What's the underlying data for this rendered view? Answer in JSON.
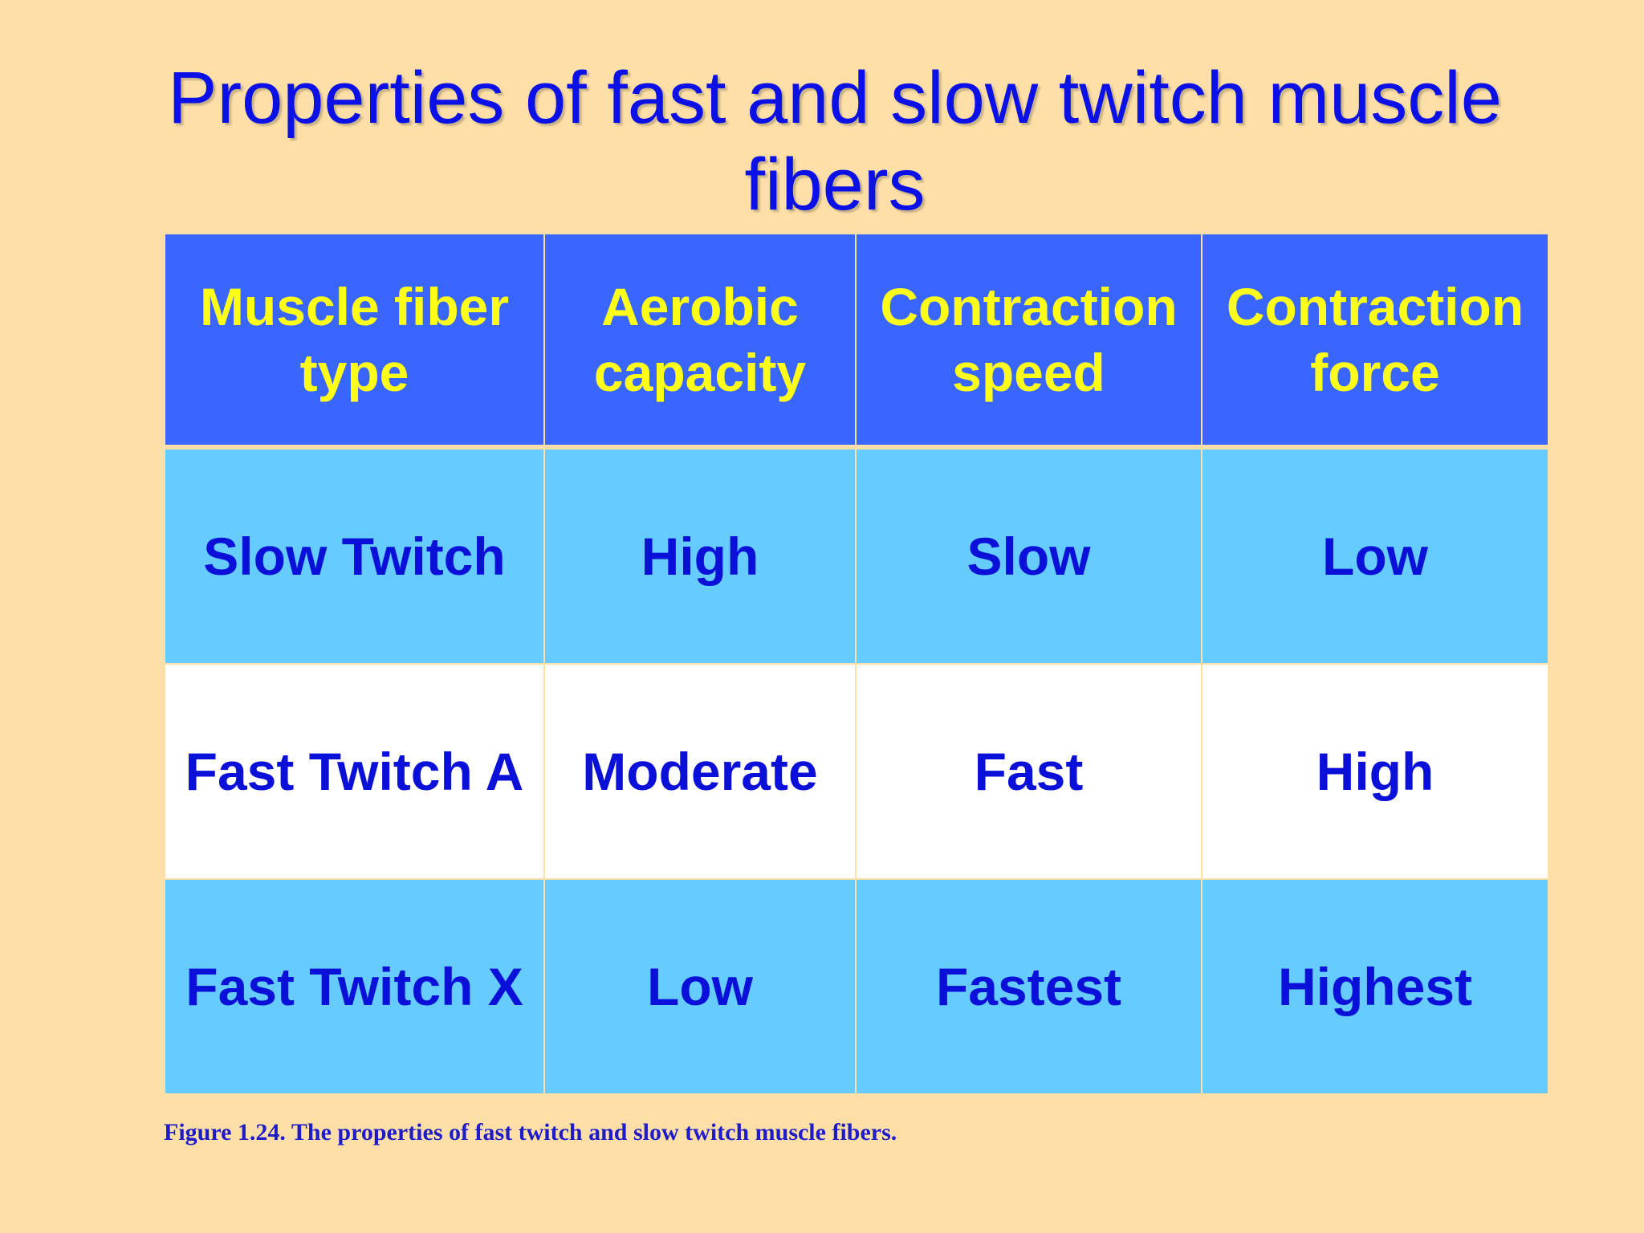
{
  "slide": {
    "title": "Properties of fast and slow twitch muscle fibers",
    "caption": "Figure 1.24. The properties of fast twitch and slow twitch muscle fibers."
  },
  "table": {
    "headers": [
      "Muscle fiber type",
      "Aerobic capacity",
      "Contraction speed",
      "Contraction force"
    ],
    "rows": [
      [
        "Slow Twitch",
        "High",
        "Slow",
        "Low"
      ],
      [
        "Fast Twitch A",
        "Moderate",
        "Fast",
        "High"
      ],
      [
        "Fast Twitch X",
        "Low",
        "Fastest",
        "Highest"
      ]
    ]
  },
  "colors": {
    "background": "#FFDFA8",
    "title_text": "#0B10E6",
    "header_fill": "#3866FF",
    "header_text": "#FFFF1A",
    "row_blue_fill": "#66CCFF",
    "row_white_fill": "#FFFFFF",
    "cell_text": "#0B10D9"
  }
}
